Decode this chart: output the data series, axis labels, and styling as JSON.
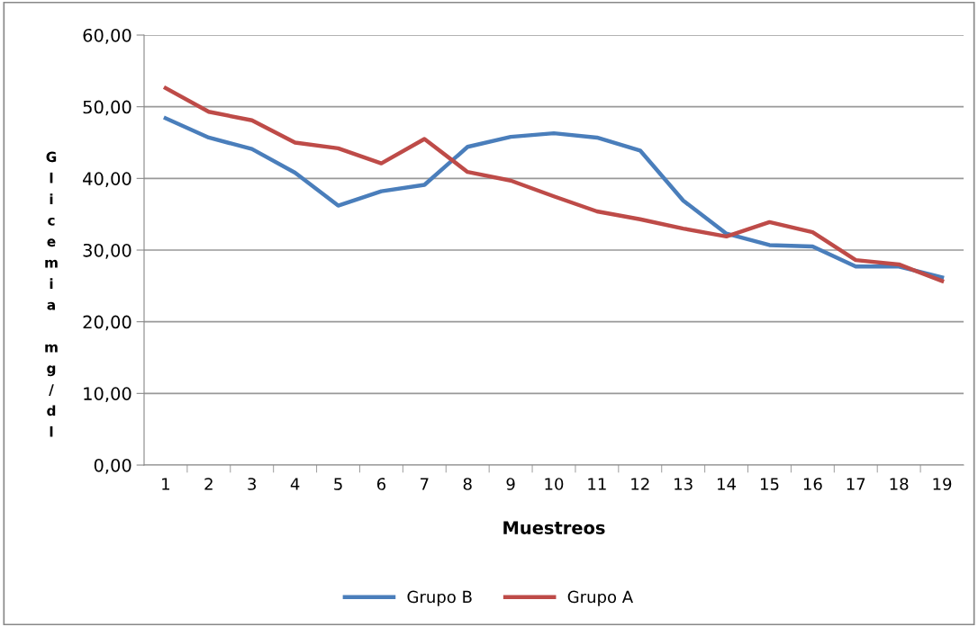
{
  "chart_data": {
    "type": "line",
    "xlabel": "Muestreos",
    "ylabel": "Glicemia mg/dl",
    "categories": [
      "1",
      "2",
      "3",
      "4",
      "5",
      "6",
      "7",
      "8",
      "9",
      "10",
      "11",
      "12",
      "13",
      "14",
      "15",
      "16",
      "17",
      "18",
      "19"
    ],
    "series": [
      {
        "name": "Grupo B",
        "color": "#4a7ebb",
        "values": [
          48.4,
          45.7,
          44.1,
          40.8,
          36.2,
          38.2,
          39.1,
          44.4,
          45.8,
          46.3,
          45.7,
          43.9,
          36.9,
          32.3,
          30.7,
          30.5,
          27.7,
          27.7,
          26.2
        ]
      },
      {
        "name": "Grupo A",
        "color": "#be4b48",
        "values": [
          52.6,
          49.3,
          48.1,
          45.0,
          44.2,
          42.1,
          45.5,
          40.9,
          39.7,
          37.5,
          35.4,
          34.3,
          33.0,
          31.9,
          33.9,
          32.5,
          28.6,
          28.0,
          25.7
        ]
      }
    ],
    "ylim": [
      0,
      60
    ],
    "yticks": [
      {
        "value": 0,
        "label": "0,00"
      },
      {
        "value": 10,
        "label": "10,00"
      },
      {
        "value": 20,
        "label": "20,00"
      },
      {
        "value": 30,
        "label": "30,00"
      },
      {
        "value": 40,
        "label": "40,00"
      },
      {
        "value": 50,
        "label": "50,00"
      },
      {
        "value": 60,
        "label": "60,00"
      }
    ],
    "grid": "y",
    "legend": "bottom",
    "marker": "none",
    "line_style": "solid"
  }
}
